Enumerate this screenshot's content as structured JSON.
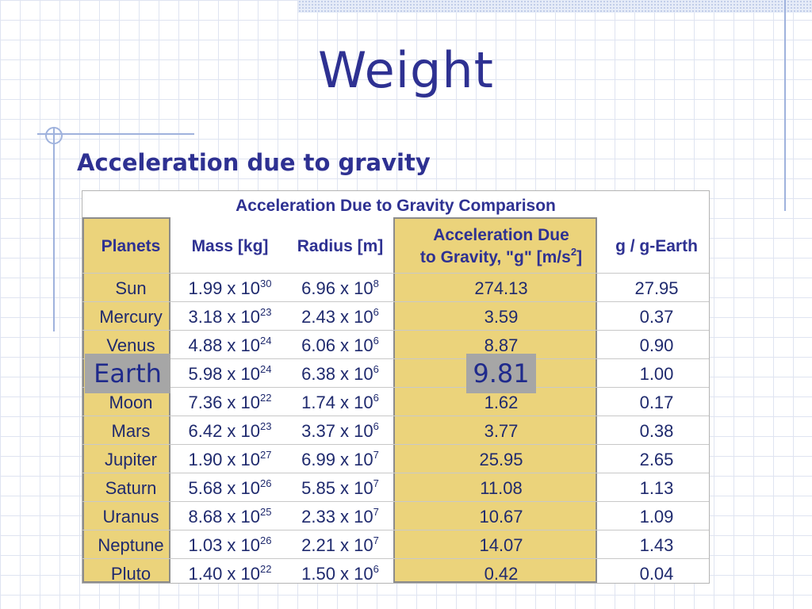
{
  "slide": {
    "title": "Weight",
    "subtitle": "Acceleration due to gravity"
  },
  "table": {
    "caption": "Acceleration Due to Gravity Comparison",
    "headers": {
      "planets": "Planets",
      "mass": "Mass [kg]",
      "radius": "Radius [m]",
      "accel_line1": "Acceleration Due",
      "accel_line2_pre": "to Gravity, \"g\" [m/s",
      "accel_sup": "2",
      "accel_line2_post": "]",
      "ratio": "g / g-Earth"
    },
    "rows": [
      {
        "planet": "Sun",
        "mass_m": "1.99 x 10",
        "mass_e": "30",
        "radius_m": "6.96 x 10",
        "radius_e": "8",
        "accel": "274.13",
        "ratio": "27.95"
      },
      {
        "planet": "Mercury",
        "mass_m": "3.18 x 10",
        "mass_e": "23",
        "radius_m": "2.43 x 10",
        "radius_e": "6",
        "accel": "3.59",
        "ratio": "0.37"
      },
      {
        "planet": "Venus",
        "mass_m": "4.88 x 10",
        "mass_e": "24",
        "radius_m": "6.06 x 10",
        "radius_e": "6",
        "accel": "8.87",
        "ratio": "0.90"
      },
      {
        "planet": "Earth",
        "mass_m": "5.98 x 10",
        "mass_e": "24",
        "radius_m": "6.38 x 10",
        "radius_e": "6",
        "accel": "9.81",
        "ratio": "1.00"
      },
      {
        "planet": "Moon",
        "mass_m": "7.36 x 10",
        "mass_e": "22",
        "radius_m": "1.74 x 10",
        "radius_e": "6",
        "accel": "1.62",
        "ratio": "0.17"
      },
      {
        "planet": "Mars",
        "mass_m": "6.42 x 10",
        "mass_e": "23",
        "radius_m": "3.37 x 10",
        "radius_e": "6",
        "accel": "3.77",
        "ratio": "0.38"
      },
      {
        "planet": "Jupiter",
        "mass_m": "1.90 x 10",
        "mass_e": "27",
        "radius_m": "6.99 x 10",
        "radius_e": "7",
        "accel": "25.95",
        "ratio": "2.65"
      },
      {
        "planet": "Saturn",
        "mass_m": "5.68 x 10",
        "mass_e": "26",
        "radius_m": "5.85 x 10",
        "radius_e": "7",
        "accel": "11.08",
        "ratio": "1.13"
      },
      {
        "planet": "Uranus",
        "mass_m": "8.68 x 10",
        "mass_e": "25",
        "radius_m": "2.33 x 10",
        "radius_e": "7",
        "accel": "10.67",
        "ratio": "1.09"
      },
      {
        "planet": "Neptune",
        "mass_m": "1.03 x 10",
        "mass_e": "26",
        "radius_m": "2.21 x 10",
        "radius_e": "7",
        "accel": "14.07",
        "ratio": "1.43"
      },
      {
        "planet": "Pluto",
        "mass_m": "1.40 x 10",
        "mass_e": "22",
        "radius_m": "1.50 x 10",
        "radius_e": "6",
        "accel": "0.42",
        "ratio": "0.04"
      }
    ]
  },
  "callouts": {
    "earth_label": "Earth",
    "earth_g": "9.81"
  },
  "colors": {
    "title": "#2e3192",
    "highlight": "#ebd37b",
    "callout": "#a6a6a6"
  }
}
